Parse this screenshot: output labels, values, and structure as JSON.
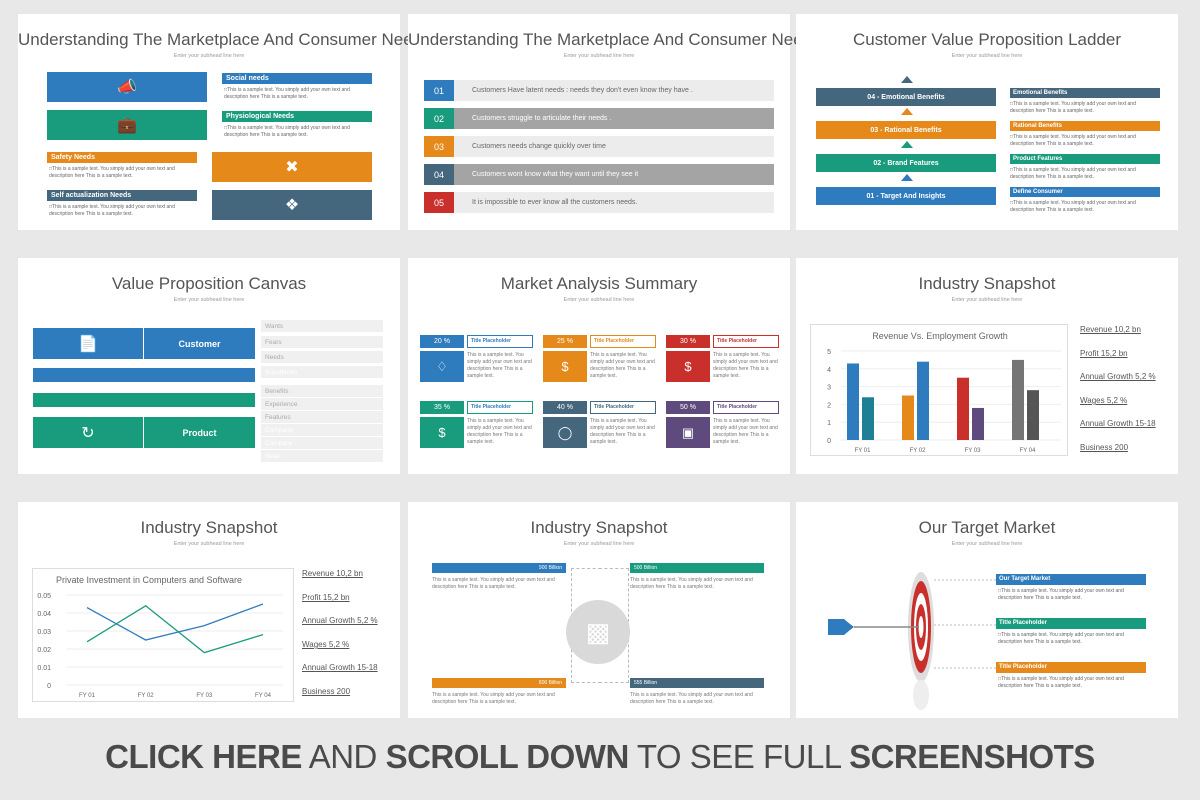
{
  "subhead": "Enter your subhead line here",
  "sample_text": "This is a sample text. You simply add your own text and description here This is a sample text.",
  "slide1": {
    "title": "Understanding The Marketplace And Consumer Needs",
    "labels": [
      "Social needs",
      "Physiological Needs",
      "Safety Needs",
      "Self actualization Needs"
    ]
  },
  "slide2": {
    "title": "Understanding The Marketplace And Consumer Needs",
    "rows": [
      {
        "num": "01",
        "text": "Customers Have latent needs : needs they don't even know they have ."
      },
      {
        "num": "02",
        "text": "Customers struggle to  articulate their needs ."
      },
      {
        "num": "03",
        "text": "Customers needs change quickly over time"
      },
      {
        "num": "04",
        "text": "Customers wont know what they want until they see it"
      },
      {
        "num": "05",
        "text": "It is impossible to ever know all the customers needs."
      }
    ]
  },
  "slide3": {
    "title": "Customer Value Proposition Ladder",
    "ladder": [
      "04 -  Emotional Benefits",
      "03 -  Rational Benefits",
      "02 -   Brand Features",
      "01 - Target And Insights"
    ],
    "labels": [
      "Emotional Benefits",
      "Rational Benefits",
      "Product Features",
      "Define Consumer"
    ]
  },
  "slide4": {
    "title": "Value Proposition Canvas",
    "customer": "Customer",
    "product": "Product",
    "rows": [
      "Wants",
      "Fears",
      "Needs",
      "Substitutes",
      "Benefits",
      "Experience",
      "Features",
      "Company:",
      "Company :",
      "Ideal :"
    ]
  },
  "slide5": {
    "title": "Market Analysis Summary",
    "placeholder": "Title Placeholder",
    "items": [
      {
        "pct": "20 %"
      },
      {
        "pct": "25 %"
      },
      {
        "pct": "30 %"
      },
      {
        "pct": "35 %"
      },
      {
        "pct": "40 %"
      },
      {
        "pct": "50 %"
      }
    ]
  },
  "slide6": {
    "title": "Industry Snapshot",
    "legend": [
      "Revenue 10,2  bn",
      "Profit 15,2  bn",
      "Annual Growth 5,2  %",
      "Wages 5,2  %",
      "Annual Growth 15-18",
      "Business 200"
    ],
    "chart_data": {
      "type": "bar",
      "title": "Revenue Vs. Employment Growth",
      "categories": [
        "FY 01",
        "FY 02",
        "FY 03",
        "FY 04"
      ],
      "series": [
        {
          "values": [
            4.3,
            2.5,
            3.5,
            4.5
          ]
        },
        {
          "values": [
            2.4,
            4.4,
            1.8,
            2.8
          ]
        }
      ],
      "ylim": [
        0,
        5
      ],
      "yticks": [
        "0",
        "1",
        "2",
        "3",
        "4",
        "5"
      ],
      "colors": [
        [
          "#2e7bbd",
          "#1f7f94"
        ],
        [
          "#e4891a",
          "#2e7bbd"
        ],
        [
          "#c9302c",
          "#5f4a7d"
        ],
        [
          "#757575",
          "#555555"
        ]
      ]
    }
  },
  "slide7": {
    "title": "Industry Snapshot",
    "legend": [
      "Revenue 10,2  bn",
      "Profit 15,2  bn",
      "Annual Growth 5,2  %",
      "Wages 5,2  %",
      "Annual Growth 15-18",
      "Business 200"
    ],
    "chart_data": {
      "type": "line",
      "title": "Private Investment in Computers and Software",
      "categories": [
        "FY 01",
        "FY 02",
        "FY 03",
        "FY 04"
      ],
      "series": [
        {
          "values": [
            0.043,
            0.025,
            0.033,
            0.045
          ],
          "color": "#2e7bbd"
        },
        {
          "values": [
            0.024,
            0.044,
            0.018,
            0.028
          ],
          "color": "#199b7d"
        }
      ],
      "ylim": [
        0,
        0.05
      ],
      "yticks": [
        "0",
        "0.01",
        "0.02",
        "0.03",
        "0.04",
        "0.05"
      ]
    }
  },
  "slide8": {
    "title": "Industry Snapshot",
    "values": [
      "900 Billion",
      "500 Billion",
      "800 Billion",
      "555 Billion"
    ]
  },
  "slide9": {
    "title": "Our Target Market",
    "labels": [
      "Our Target Market",
      "Title Placeholder",
      "Title Placeholder"
    ]
  },
  "banner": {
    "p1": "CLICK HERE",
    "p2": " AND ",
    "p3": "SCROLL DOWN",
    "p4": " TO SEE FULL ",
    "p5": "SCREENSHOTS"
  }
}
